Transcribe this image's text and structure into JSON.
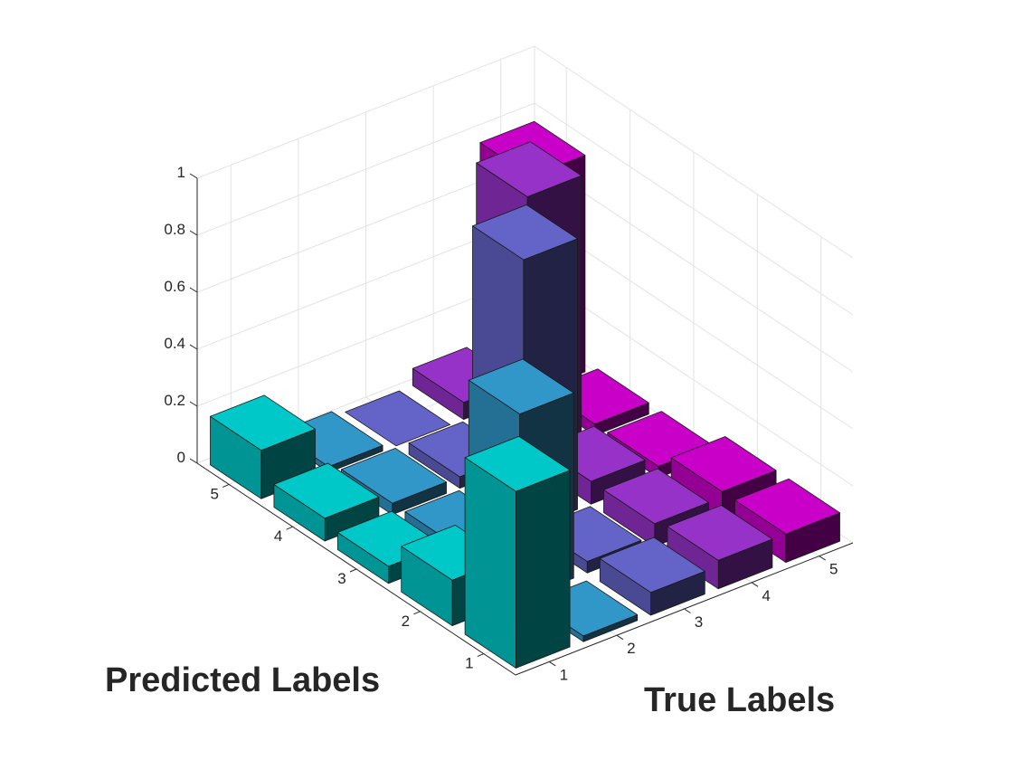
{
  "chart_data": {
    "type": "bar3d",
    "title": "",
    "xlabel": "True Labels",
    "ylabel": "Predicted Labels",
    "zlabel": "",
    "x_categories": [
      "1",
      "2",
      "3",
      "4",
      "5"
    ],
    "y_categories": [
      "1",
      "2",
      "3",
      "4",
      "5"
    ],
    "z_ticks": [
      "0",
      "0.2",
      "0.4",
      "0.6",
      "0.8",
      "1"
    ],
    "zlim": [
      0,
      1
    ],
    "grid": true,
    "series": [
      {
        "x": "1",
        "colors": [
          "#00c8c8",
          "#00c8c8",
          "#00c8c8",
          "#00c8c8",
          "#00c8c8"
        ],
        "values": [
          0.62,
          0.16,
          0.06,
          0.08,
          0.17
        ]
      },
      {
        "x": "2",
        "colors": [
          "#3196c8",
          "#3196c8",
          "#3196c8",
          "#3196c8",
          "#3196c8"
        ],
        "values": [
          0.02,
          0.65,
          0.04,
          0.04,
          0.02
        ]
      },
      {
        "x": "3",
        "colors": [
          "#6464c8",
          "#6464c8",
          "#6464c8",
          "#6464c8",
          "#6464c8"
        ],
        "values": [
          0.08,
          0.04,
          0.95,
          0.04,
          0.0
        ]
      },
      {
        "x": "4",
        "colors": [
          "#9632c8",
          "#9632c8",
          "#9632c8",
          "#9632c8",
          "#9632c8"
        ],
        "values": [
          0.1,
          0.08,
          0.08,
          0.93,
          0.06
        ]
      },
      {
        "x": "5",
        "colors": [
          "#c800c8",
          "#c800c8",
          "#c800c8",
          "#c800c8",
          "#c800c8"
        ],
        "values": [
          0.1,
          0.1,
          0.04,
          0.04,
          0.76
        ]
      }
    ]
  }
}
